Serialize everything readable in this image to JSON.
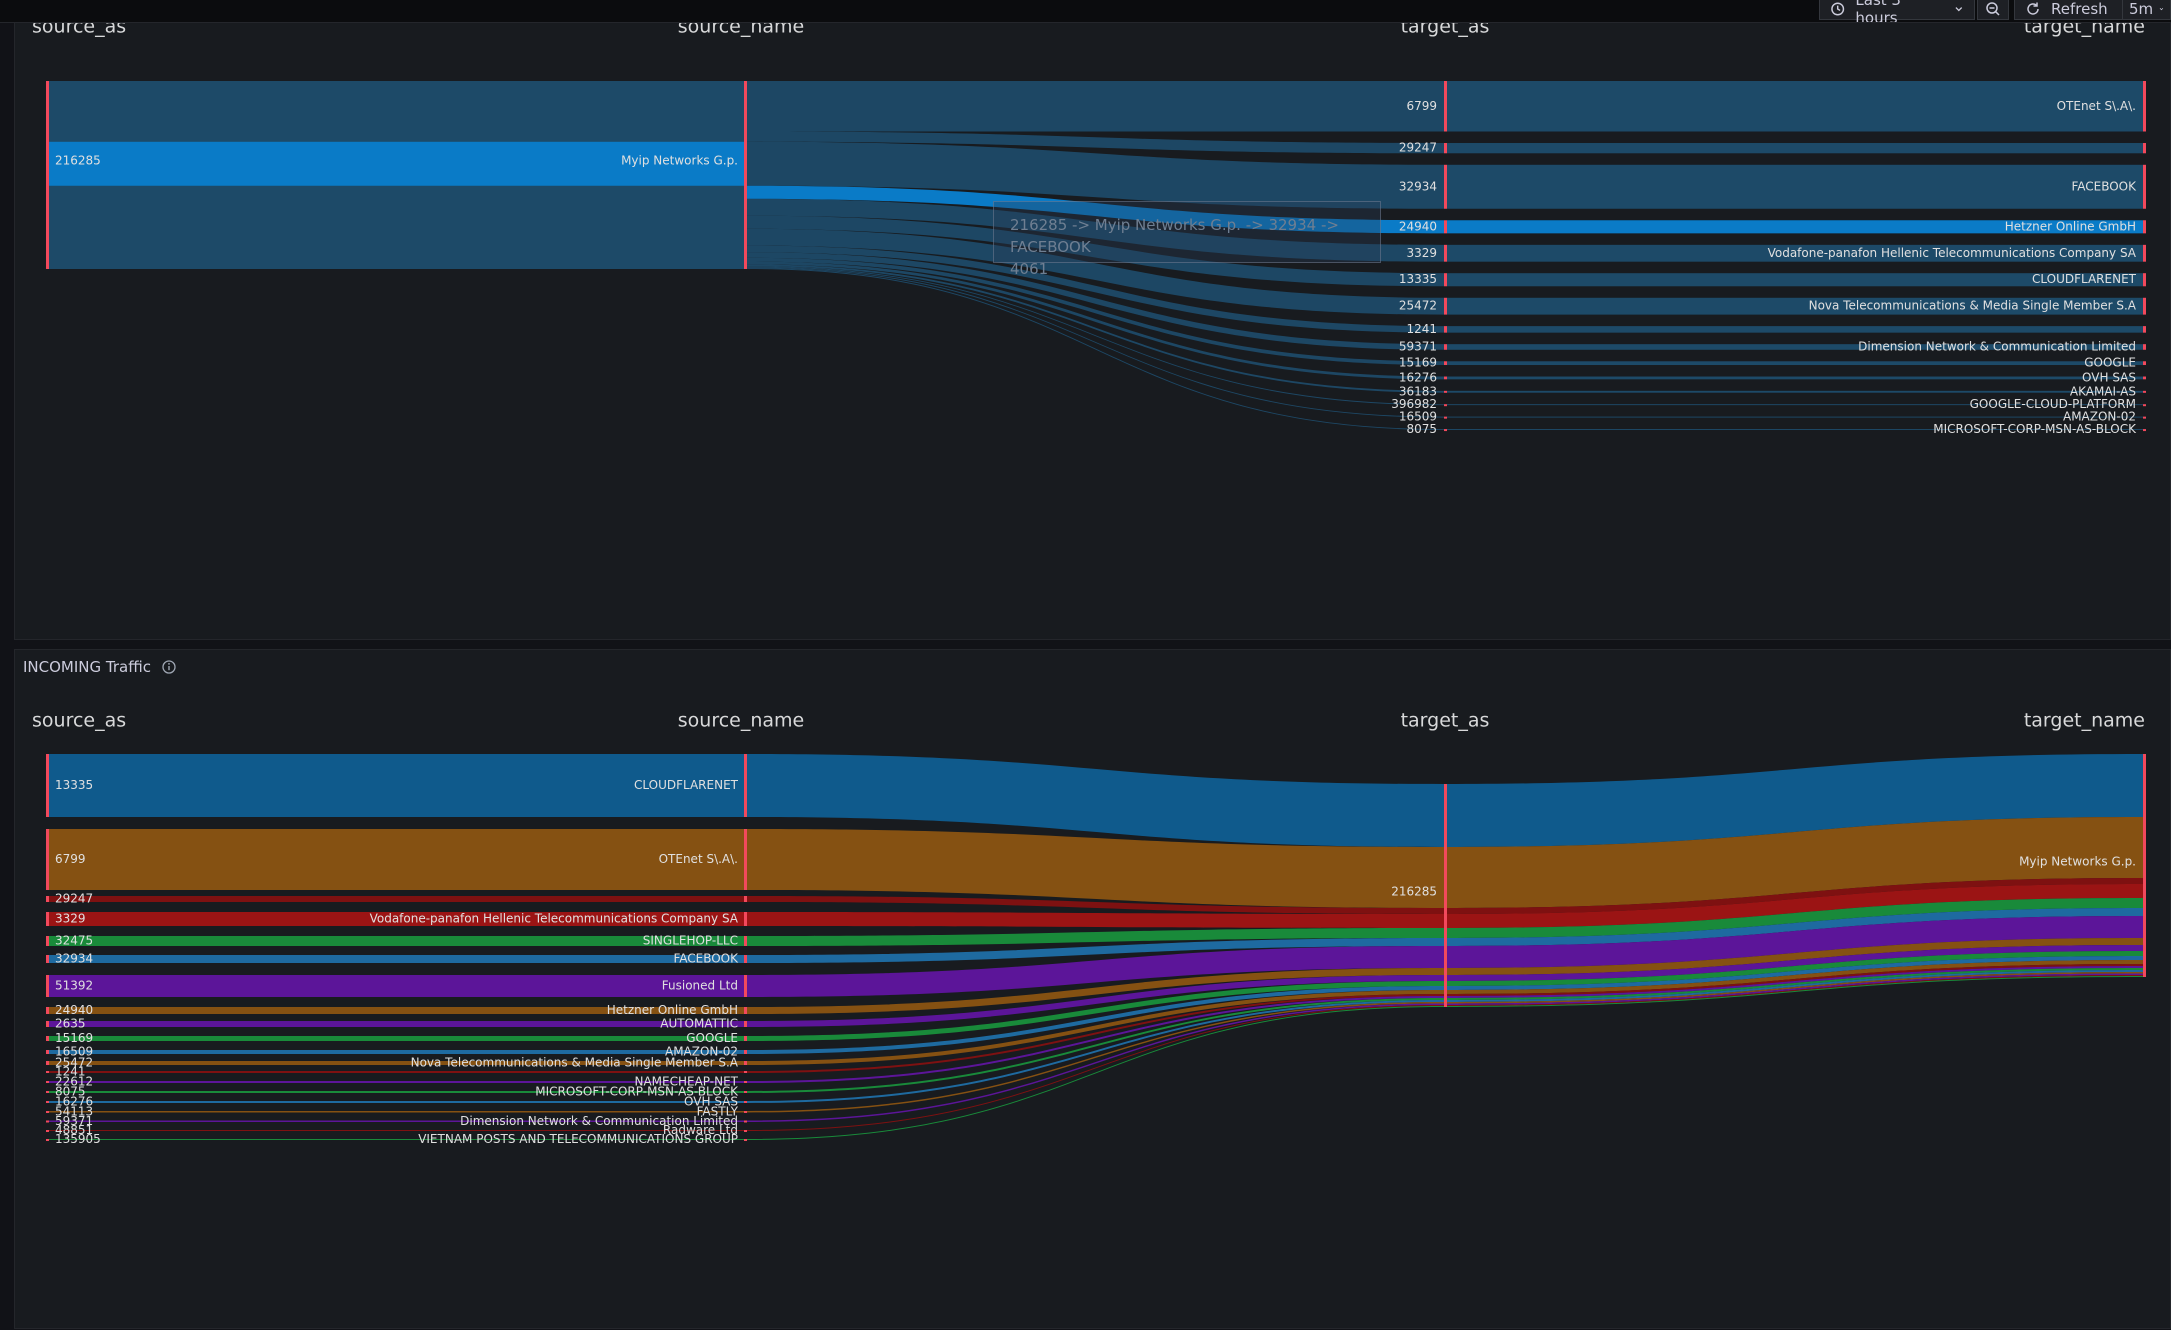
{
  "toolbar": {
    "time_range": "Last 3 hours",
    "refresh_label": "Refresh",
    "refresh_interval": "5m"
  },
  "columns": [
    "source_as",
    "source_name",
    "target_as",
    "target_name"
  ],
  "outgoing": {
    "tooltip_line1": "216285 -> Myip Networks G.p. -> 32934 -> FACEBOOK",
    "tooltip_line2": "4061",
    "highlight_color": "#0a7bc7",
    "flow_color": "#1d4a68",
    "node_color": "#f2495c",
    "sources": [
      {
        "as": "216285",
        "name": "Myip Networks G.p."
      }
    ],
    "targets": [
      {
        "as": "6799",
        "name": "OTEnet S\\.A\\."
      },
      {
        "as": "29247",
        "name": ""
      },
      {
        "as": "32934",
        "name": "FACEBOOK"
      },
      {
        "as": "24940",
        "name": "Hetzner Online GmbH"
      },
      {
        "as": "3329",
        "name": "Vodafone-panafon Hellenic Telecommunications Company SA"
      },
      {
        "as": "13335",
        "name": "CLOUDFLARENET"
      },
      {
        "as": "25472",
        "name": "Nova Telecommunications & Media Single Member S.A"
      },
      {
        "as": "1241",
        "name": ""
      },
      {
        "as": "59371",
        "name": "Dimension Network & Communication Limited"
      },
      {
        "as": "15169",
        "name": "GOOGLE"
      },
      {
        "as": "16276",
        "name": "OVH SAS"
      },
      {
        "as": "36183",
        "name": "AKAMAI-AS"
      },
      {
        "as": "396982",
        "name": "GOOGLE-CLOUD-PLATFORM"
      },
      {
        "as": "16509",
        "name": "AMAZON-02"
      },
      {
        "as": "8075",
        "name": "MICROSOFT-CORP-MSN-AS-BLOCK"
      }
    ]
  },
  "incoming": {
    "title": "INCOMING Traffic",
    "target_as": "216285",
    "target_name": "Myip Networks G.p.",
    "colors": {
      "blue": "#0f5a8c",
      "orange": "#855112",
      "darkred": "#7e1111",
      "red": "#9b1414",
      "green": "#198a3a",
      "purple": "#5c1599",
      "mid_blue": "#1e6aa0",
      "node": "#f2495c"
    },
    "sources": [
      {
        "as": "13335",
        "name": "CLOUDFLARENET",
        "color": "blue"
      },
      {
        "as": "6799",
        "name": "OTEnet S\\.A\\.",
        "color": "orange"
      },
      {
        "as": "29247",
        "name": "",
        "color": "darkred"
      },
      {
        "as": "3329",
        "name": "Vodafone-panafon Hellenic Telecommunications Company SA",
        "color": "red"
      },
      {
        "as": "32475",
        "name": "SINGLEHOP-LLC",
        "color": "green"
      },
      {
        "as": "32934",
        "name": "FACEBOOK",
        "color": "mid_blue"
      },
      {
        "as": "51392",
        "name": "Fusioned Ltd",
        "color": "purple"
      },
      {
        "as": "24940",
        "name": "Hetzner Online GmbH",
        "color": "orange"
      },
      {
        "as": "2635",
        "name": "AUTOMATTIC",
        "color": "purple"
      },
      {
        "as": "15169",
        "name": "GOOGLE",
        "color": "green"
      },
      {
        "as": "16509",
        "name": "AMAZON-02",
        "color": "mid_blue"
      },
      {
        "as": "25472",
        "name": "Nova Telecommunications & Media Single Member S.A",
        "color": "orange"
      },
      {
        "as": "1241",
        "name": "",
        "color": "darkred"
      },
      {
        "as": "22612",
        "name": "NAMECHEAP-NET",
        "color": "purple"
      },
      {
        "as": "8075",
        "name": "MICROSOFT-CORP-MSN-AS-BLOCK",
        "color": "green"
      },
      {
        "as": "16276",
        "name": "OVH SAS",
        "color": "mid_blue"
      },
      {
        "as": "54113",
        "name": "FASTLY",
        "color": "orange"
      },
      {
        "as": "59371",
        "name": "Dimension Network & Communication Limited",
        "color": "purple"
      },
      {
        "as": "48851",
        "name": "Radware Ltd",
        "color": "darkred"
      },
      {
        "as": "135905",
        "name": "VIETNAM POSTS AND TELECOMMUNICATIONS GROUP",
        "color": "green"
      }
    ]
  }
}
